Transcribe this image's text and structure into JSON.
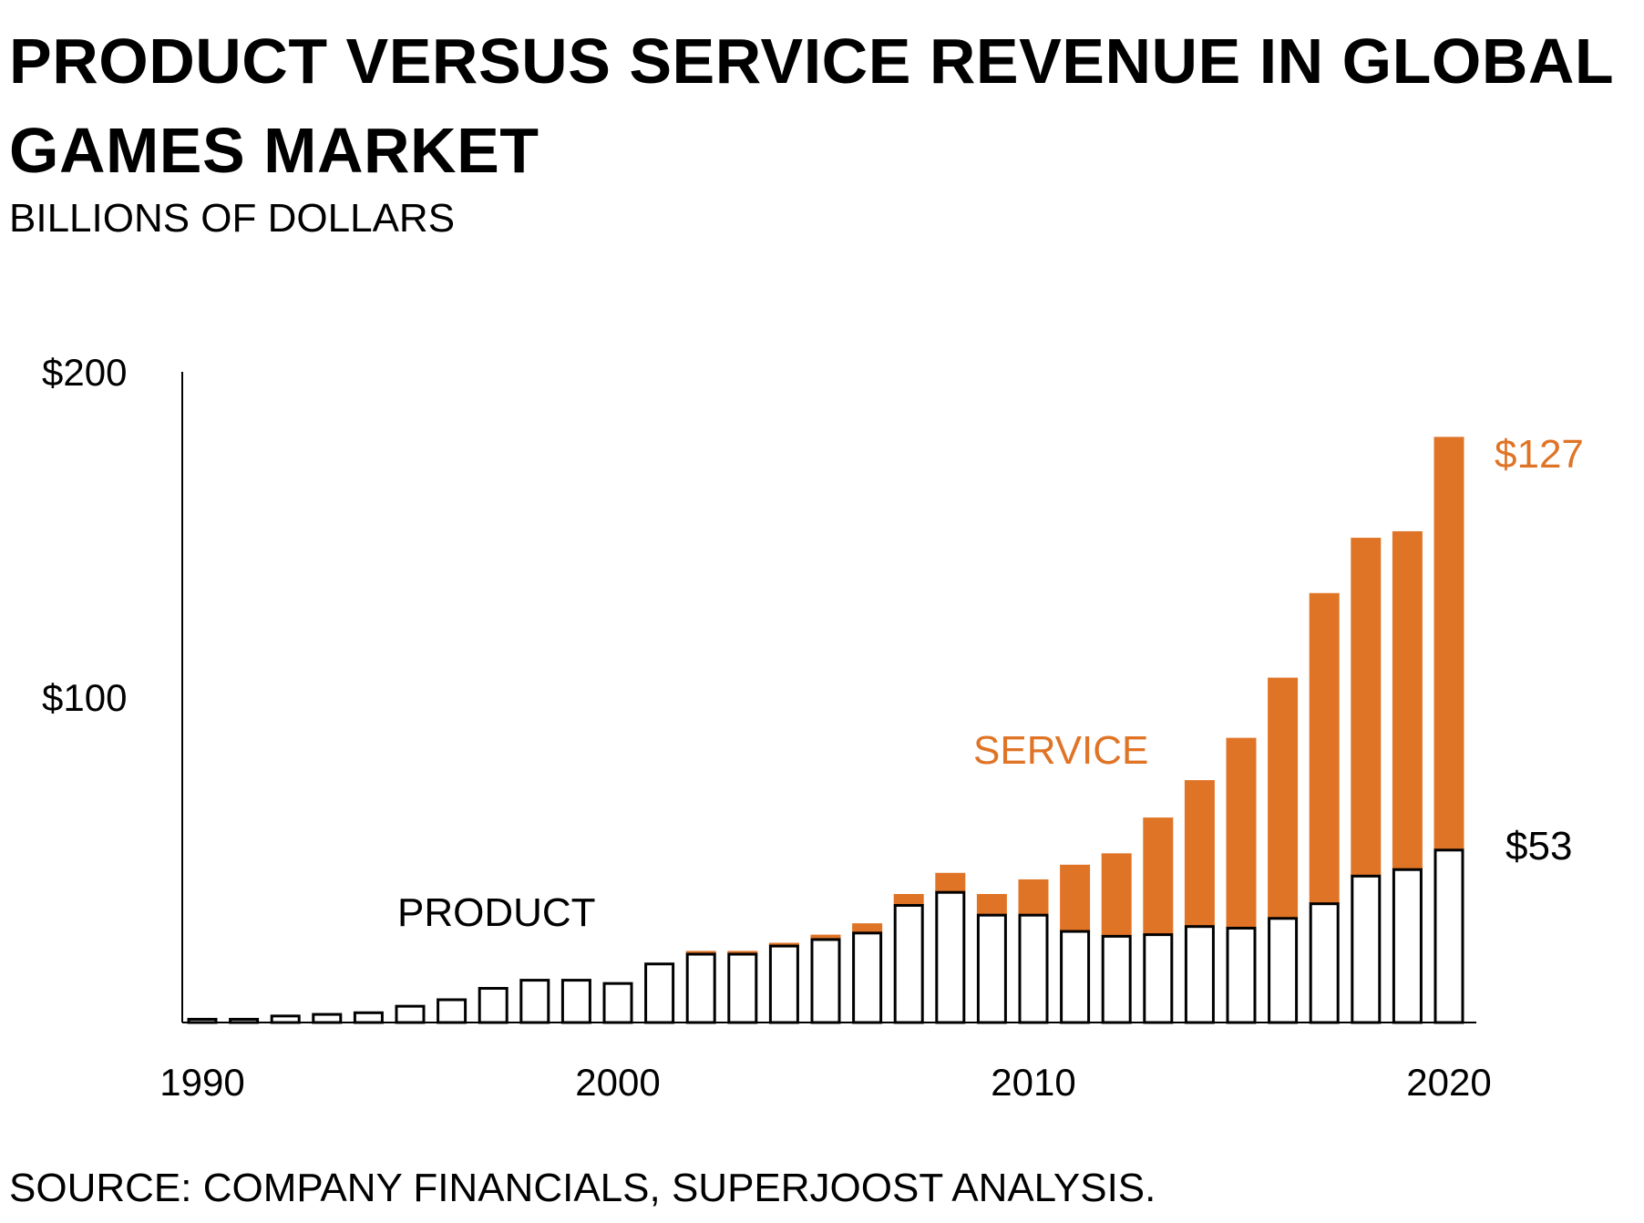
{
  "title": "PRODUCT VERSUS SERVICE REVENUE IN GLOBAL GAMES MARKET",
  "subtitle": "BILLIONS OF DOLLARS",
  "source": "SOURCE: COMPANY FINANCIALS, SUPERJOOST ANALYSIS.",
  "colors": {
    "service": "#E07426",
    "product_fill": "#ffffff",
    "product_stroke": "#000000",
    "axis": "#000000"
  },
  "chart_data": {
    "type": "bar",
    "stacked": true,
    "title": "PRODUCT VERSUS SERVICE REVENUE IN GLOBAL GAMES MARKET",
    "subtitle": "BILLIONS OF DOLLARS",
    "x": [
      1990,
      1991,
      1992,
      1993,
      1994,
      1995,
      1996,
      1997,
      1998,
      1999,
      2000,
      2001,
      2002,
      2003,
      2004,
      2005,
      2006,
      2007,
      2008,
      2009,
      2010,
      2011,
      2012,
      2013,
      2014,
      2015,
      2016,
      2017,
      2018,
      2019,
      2020
    ],
    "series": [
      {
        "name": "PRODUCT",
        "values": [
          1,
          1,
          2,
          2.5,
          3,
          5,
          7,
          10.5,
          13,
          13,
          12,
          18,
          21,
          21,
          23.5,
          25.5,
          27.5,
          36,
          40,
          33,
          33,
          28,
          26.5,
          27,
          29.5,
          29,
          32,
          36.5,
          45,
          47,
          53
        ]
      },
      {
        "name": "SERVICE",
        "values": [
          0,
          0,
          0,
          0,
          0,
          0,
          0,
          0,
          0,
          0,
          0,
          0,
          1,
          1,
          1,
          1.5,
          3,
          3.5,
          6,
          6.5,
          11,
          20.5,
          25.5,
          36,
          45,
          58.5,
          74,
          95.5,
          104,
          104,
          127
        ]
      }
    ],
    "ylim": [
      0,
      200
    ],
    "yticks": [
      {
        "value": 200,
        "label": "$200"
      },
      {
        "value": 100,
        "label": "$100"
      }
    ],
    "xticks": [
      {
        "value": 1990,
        "label": "1990"
      },
      {
        "value": 2000,
        "label": "2000"
      },
      {
        "value": 2010,
        "label": "2010"
      },
      {
        "value": 2020,
        "label": "2020"
      }
    ],
    "annotations": [
      {
        "text": "PRODUCT",
        "series": "PRODUCT"
      },
      {
        "text": "SERVICE",
        "series": "SERVICE"
      },
      {
        "text": "$127",
        "series": "SERVICE",
        "x": 2020
      },
      {
        "text": "$53",
        "series": "PRODUCT",
        "x": 2020
      }
    ],
    "grid": false,
    "legend": "none"
  }
}
